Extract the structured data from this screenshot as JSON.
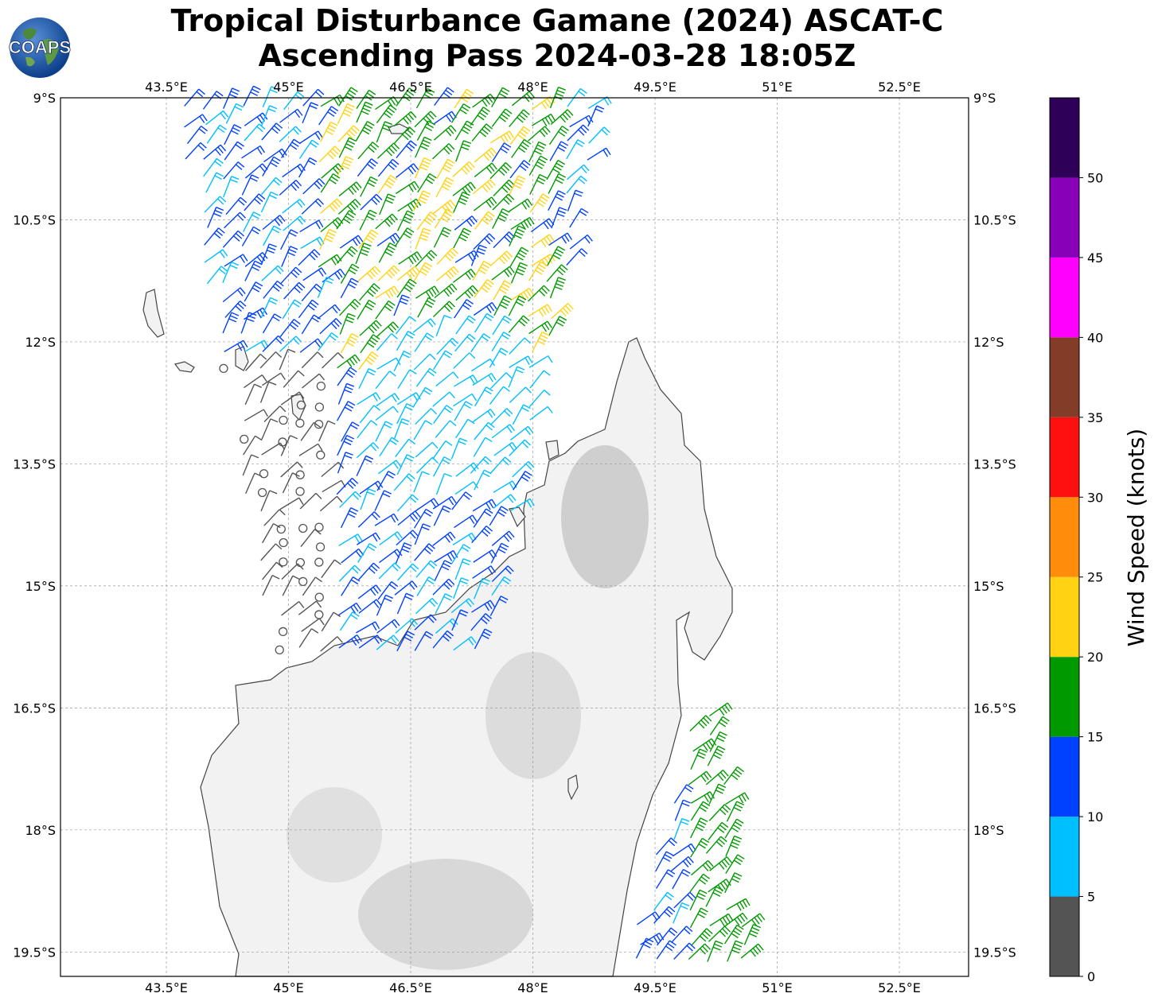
{
  "title": {
    "line1": "Tropical Disturbance Gamane (2024) ASCAT-C",
    "line2": "Ascending Pass 2024-03-28 18:05Z"
  },
  "logo": {
    "text": "COAPS",
    "icon": "globe-logo-icon"
  },
  "map": {
    "lon_ticks": [
      "43.5°E",
      "45°E",
      "46.5°E",
      "48°E",
      "49.5°E",
      "51°E",
      "52.5°E"
    ],
    "lon_values": [
      43.5,
      45,
      46.5,
      48,
      49.5,
      51,
      52.5
    ],
    "lat_ticks": [
      "9°S",
      "10.5°S",
      "12°S",
      "13.5°S",
      "15°S",
      "16.5°S",
      "18°S",
      "19.5°S"
    ],
    "lat_values": [
      -9,
      -10.5,
      -12,
      -13.5,
      -15,
      -16.5,
      -18,
      -19.5
    ],
    "lon_range": [
      42.2,
      53.35
    ],
    "lat_range": [
      -19.8,
      -9
    ],
    "gridlines": true,
    "land_color": "#f2f2f2",
    "ocean_color": "#ffffff",
    "coast_color": "#444444"
  },
  "colorbar": {
    "title": "Wind Speed (knots)",
    "labels": [
      "0",
      "5",
      "10",
      "15",
      "20",
      "25",
      "30",
      "35",
      "40",
      "45",
      "50"
    ],
    "bins": [
      {
        "min": 0,
        "max": 5,
        "color": "#545454"
      },
      {
        "min": 5,
        "max": 10,
        "color": "#00bfff"
      },
      {
        "min": 10,
        "max": 15,
        "color": "#0040ff"
      },
      {
        "min": 15,
        "max": 20,
        "color": "#009a00"
      },
      {
        "min": 20,
        "max": 25,
        "color": "#ffd314"
      },
      {
        "min": 25,
        "max": 30,
        "color": "#ff8c0a"
      },
      {
        "min": 30,
        "max": 35,
        "color": "#ff1010"
      },
      {
        "min": 35,
        "max": 40,
        "color": "#823c28"
      },
      {
        "min": 40,
        "max": 45,
        "color": "#ff00ff"
      },
      {
        "min": 45,
        "max": 50,
        "color": "#8800b8"
      },
      {
        "min": 50,
        "max": 55,
        "color": "#2e0058"
      }
    ]
  }
}
